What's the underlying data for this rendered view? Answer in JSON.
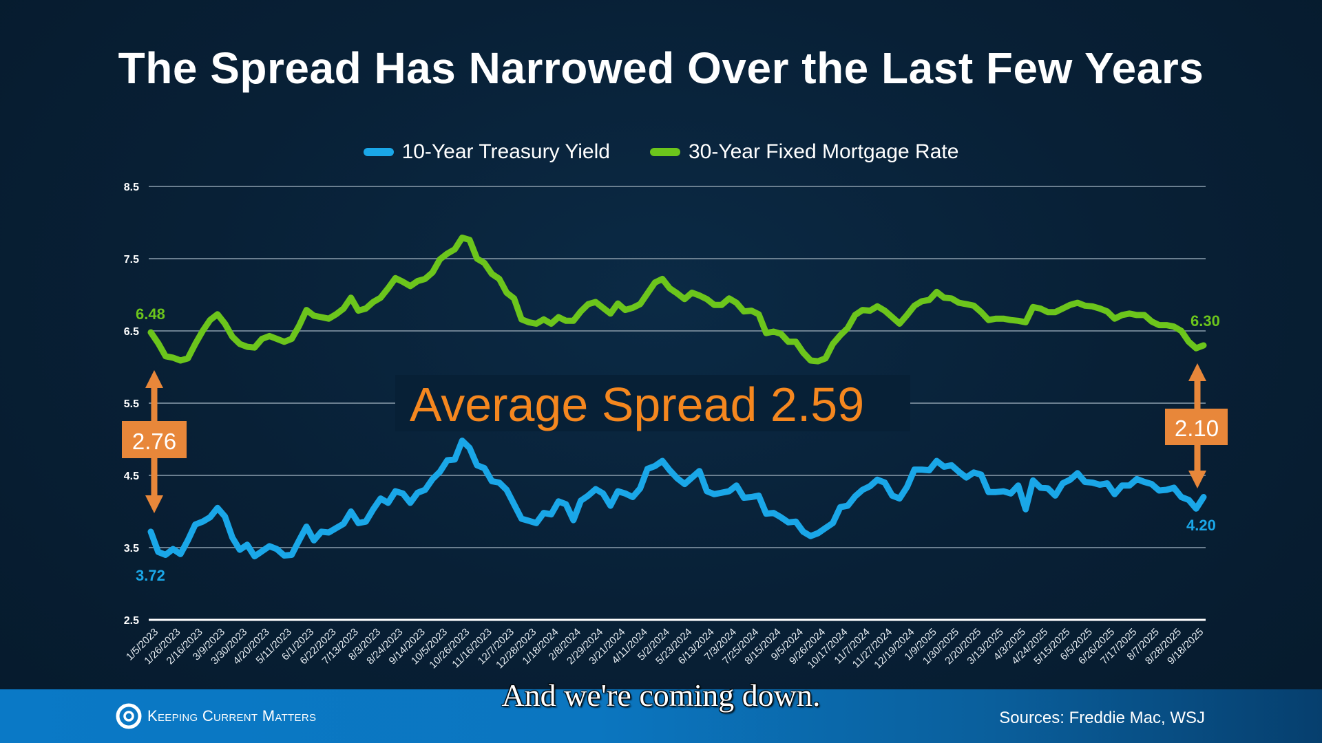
{
  "title": "The Spread Has Narrowed Over the Last Few Years",
  "legend": [
    {
      "label": "10-Year Treasury Yield",
      "color": "#1aa7e8"
    },
    {
      "label": "30-Year Fixed Mortgage Rate",
      "color": "#6cc51c"
    }
  ],
  "annotations": {
    "average_spread_label": "Average Spread 2.59",
    "start_spread": "2.76",
    "end_spread": "2.10",
    "start_mortgage": "6.48",
    "start_treasury": "3.72",
    "end_mortgage": "6.30",
    "end_treasury": "4.20",
    "accent_color": "#e8873a",
    "spread_text_color": "#f5871f"
  },
  "caption": "And we're coming down.",
  "footer": {
    "brand": "Keeping Current Matters",
    "sources": "Sources: Freddie Mac, WSJ"
  },
  "chart_data": {
    "type": "line",
    "title": "The Spread Has Narrowed Over the Last Few Years",
    "xlabel": "",
    "ylabel": "",
    "ylim": [
      2.5,
      8.5
    ],
    "yticks": [
      "8.5",
      "7.5",
      "6.5",
      "5.5",
      "4.5",
      "3.5",
      "2.5"
    ],
    "grid": true,
    "legend_position": "top-center",
    "x_tick_labels": [
      "1/5/2023",
      "1/26/2023",
      "2/16/2023",
      "3/9/2023",
      "3/30/2023",
      "4/20/2023",
      "5/11/2023",
      "6/1/2023",
      "6/22/2023",
      "7/13/2023",
      "8/3/2023",
      "8/24/2023",
      "9/14/2023",
      "10/5/2023",
      "10/26/2023",
      "11/16/2023",
      "12/7/2023",
      "12/28/2023",
      "1/18/2024",
      "2/8/2024",
      "2/29/2024",
      "3/21/2024",
      "4/11/2024",
      "5/2/2024",
      "5/23/2024",
      "6/13/2024",
      "7/3/2024",
      "7/25/2024",
      "8/15/2024",
      "9/5/2024",
      "9/26/2024",
      "10/17/2024",
      "11/7/2024",
      "11/27/2024",
      "12/19/2024",
      "1/9/2025",
      "1/30/2025",
      "2/20/2025",
      "3/13/2025",
      "4/3/2025",
      "4/24/2025",
      "5/15/2025",
      "6/5/2025",
      "6/26/2025",
      "7/17/2025",
      "8/7/2025",
      "8/28/2025",
      "9/18/2025"
    ],
    "x_tick_every_n_weeks": 3,
    "series": [
      {
        "name": "30-Year Fixed Mortgage Rate",
        "color": "#6cc51c",
        "values": [
          6.48,
          6.33,
          6.15,
          6.13,
          6.09,
          6.12,
          6.32,
          6.5,
          6.65,
          6.73,
          6.6,
          6.42,
          6.32,
          6.28,
          6.27,
          6.39,
          6.43,
          6.39,
          6.35,
          6.39,
          6.57,
          6.79,
          6.71,
          6.69,
          6.67,
          6.73,
          6.81,
          6.96,
          6.78,
          6.81,
          6.9,
          6.96,
          7.09,
          7.23,
          7.18,
          7.12,
          7.19,
          7.22,
          7.31,
          7.49,
          7.57,
          7.63,
          7.79,
          7.76,
          7.5,
          7.44,
          7.29,
          7.22,
          7.03,
          6.95,
          6.66,
          6.62,
          6.6,
          6.66,
          6.6,
          6.69,
          6.64,
          6.64,
          6.77,
          6.87,
          6.9,
          6.82,
          6.74,
          6.88,
          6.79,
          6.82,
          6.87,
          7.02,
          7.17,
          7.22,
          7.09,
          7.02,
          6.94,
          7.03,
          6.99,
          6.94,
          6.86,
          6.86,
          6.95,
          6.89,
          6.77,
          6.78,
          6.73,
          6.47,
          6.49,
          6.46,
          6.35,
          6.35,
          6.2,
          6.09,
          6.08,
          6.12,
          6.32,
          6.44,
          6.54,
          6.72,
          6.79,
          6.78,
          6.84,
          6.78,
          6.69,
          6.6,
          6.72,
          6.85,
          6.91,
          6.93,
          7.04,
          6.96,
          6.95,
          6.89,
          6.87,
          6.85,
          6.76,
          6.65,
          6.67,
          6.67,
          6.65,
          6.64,
          6.62,
          6.83,
          6.81,
          6.76,
          6.76,
          6.81,
          6.86,
          6.89,
          6.85,
          6.84,
          6.81,
          6.77,
          6.67,
          6.72,
          6.74,
          6.72,
          6.72,
          6.63,
          6.58,
          6.58,
          6.56,
          6.5,
          6.35,
          6.26,
          6.3
        ]
      },
      {
        "name": "10-Year Treasury Yield",
        "color": "#1aa7e8",
        "values": [
          3.72,
          3.44,
          3.4,
          3.48,
          3.41,
          3.6,
          3.82,
          3.86,
          3.92,
          4.05,
          3.93,
          3.64,
          3.47,
          3.54,
          3.38,
          3.45,
          3.52,
          3.48,
          3.39,
          3.4,
          3.6,
          3.79,
          3.6,
          3.72,
          3.71,
          3.77,
          3.83,
          4.0,
          3.84,
          3.86,
          4.03,
          4.18,
          4.12,
          4.28,
          4.25,
          4.12,
          4.26,
          4.3,
          4.45,
          4.55,
          4.71,
          4.72,
          4.98,
          4.88,
          4.64,
          4.6,
          4.42,
          4.4,
          4.3,
          4.1,
          3.9,
          3.87,
          3.84,
          3.98,
          3.96,
          4.14,
          4.1,
          3.88,
          4.15,
          4.22,
          4.31,
          4.25,
          4.08,
          4.28,
          4.25,
          4.2,
          4.32,
          4.59,
          4.63,
          4.7,
          4.57,
          4.46,
          4.38,
          4.47,
          4.56,
          4.28,
          4.24,
          4.26,
          4.28,
          4.36,
          4.19,
          4.2,
          4.22,
          3.97,
          3.98,
          3.92,
          3.85,
          3.86,
          3.72,
          3.66,
          3.7,
          3.77,
          3.84,
          4.06,
          4.08,
          4.21,
          4.3,
          4.35,
          4.44,
          4.4,
          4.22,
          4.18,
          4.34,
          4.58,
          4.58,
          4.57,
          4.7,
          4.62,
          4.64,
          4.55,
          4.47,
          4.54,
          4.51,
          4.27,
          4.27,
          4.28,
          4.25,
          4.36,
          4.03,
          4.43,
          4.33,
          4.32,
          4.22,
          4.39,
          4.44,
          4.53,
          4.41,
          4.4,
          4.37,
          4.39,
          4.24,
          4.36,
          4.36,
          4.45,
          4.41,
          4.38,
          4.29,
          4.3,
          4.33,
          4.2,
          4.16,
          4.04,
          4.2
        ]
      }
    ]
  }
}
